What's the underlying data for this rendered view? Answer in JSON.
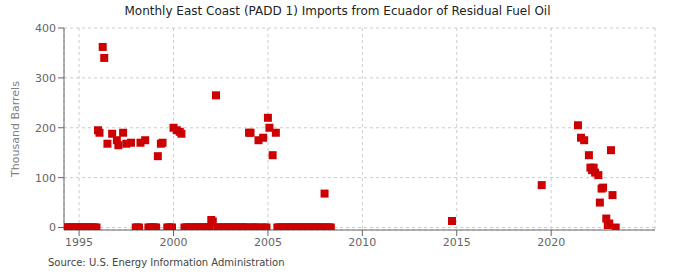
{
  "chart_data": {
    "type": "scatter",
    "title": "Monthly East Coast (PADD 1) Imports from Ecuador of Residual Fuel Oil",
    "ylabel": "Thousand Barrels",
    "source": "Source: U.S. Energy Information Administration",
    "color": "#cc0000",
    "marker": "square",
    "grid": true,
    "xlim": [
      1994.2,
      2025.5
    ],
    "ylim": [
      -5,
      400
    ],
    "xticks": [
      1995,
      2000,
      2005,
      2010,
      2015,
      2020
    ],
    "yticks": [
      0,
      100,
      200,
      300,
      400
    ],
    "x": [
      1994.25,
      1994.33,
      1994.42,
      1994.5,
      1994.58,
      1994.67,
      1994.75,
      1994.83,
      1994.92,
      1995.0,
      1995.08,
      1995.17,
      1995.25,
      1995.33,
      1995.42,
      1995.5,
      1995.58,
      1995.67,
      1995.75,
      1995.83,
      1995.92,
      1996.0,
      1996.08,
      1996.25,
      1996.33,
      1996.5,
      1996.75,
      1997.0,
      1997.08,
      1997.33,
      1997.5,
      1997.75,
      1998.0,
      1998.08,
      1998.17,
      1998.25,
      1998.5,
      1998.67,
      1998.75,
      1998.83,
      1998.92,
      1999.0,
      1999.08,
      1999.17,
      1999.33,
      1999.42,
      1999.67,
      1999.75,
      1999.83,
      1999.92,
      2000.0,
      2000.17,
      2000.33,
      2000.42,
      2000.58,
      2000.67,
      2000.75,
      2000.83,
      2000.92,
      2001.0,
      2001.08,
      2001.17,
      2001.25,
      2001.33,
      2001.42,
      2001.5,
      2001.58,
      2001.67,
      2001.75,
      2001.83,
      2001.92,
      2002.0,
      2002.08,
      2002.25,
      2002.33,
      2002.42,
      2002.5,
      2002.58,
      2002.67,
      2002.75,
      2002.83,
      2002.92,
      2003.0,
      2003.08,
      2003.17,
      2003.25,
      2003.33,
      2003.42,
      2003.5,
      2003.58,
      2003.67,
      2003.75,
      2003.83,
      2003.92,
      2004.0,
      2004.08,
      2004.17,
      2004.25,
      2004.33,
      2004.42,
      2004.5,
      2004.67,
      2004.75,
      2004.83,
      2004.92,
      2005.0,
      2005.08,
      2005.25,
      2005.42,
      2005.5,
      2005.58,
      2005.67,
      2005.75,
      2005.83,
      2005.92,
      2006.0,
      2006.08,
      2006.17,
      2006.25,
      2006.33,
      2006.42,
      2006.5,
      2006.58,
      2006.67,
      2006.75,
      2006.83,
      2006.92,
      2007.0,
      2007.08,
      2007.17,
      2007.25,
      2007.33,
      2007.42,
      2007.5,
      2007.58,
      2007.67,
      2007.75,
      2007.83,
      2007.92,
      2008.0,
      2008.08,
      2008.17,
      2008.25,
      2008.33,
      2014.75,
      2019.5,
      2021.42,
      2021.58,
      2021.75,
      2022.0,
      2022.08,
      2022.17,
      2022.25,
      2022.33,
      2022.5,
      2022.58,
      2022.67,
      2022.75,
      2022.92,
      2023.0,
      2023.08,
      2023.17,
      2023.25,
      2023.42
    ],
    "values": [
      0,
      0,
      0,
      0,
      0,
      0,
      0,
      0,
      0,
      0,
      0,
      0,
      0,
      0,
      0,
      0,
      0,
      0,
      0,
      0,
      0,
      195,
      190,
      362,
      340,
      168,
      188,
      175,
      165,
      190,
      168,
      170,
      0,
      0,
      0,
      170,
      175,
      0,
      0,
      0,
      0,
      0,
      0,
      143,
      168,
      170,
      0,
      0,
      0,
      0,
      200,
      195,
      192,
      188,
      0,
      0,
      0,
      0,
      0,
      0,
      0,
      0,
      0,
      0,
      0,
      0,
      0,
      0,
      0,
      0,
      0,
      15,
      12,
      265,
      0,
      0,
      0,
      0,
      0,
      0,
      0,
      0,
      0,
      0,
      0,
      0,
      0,
      0,
      0,
      0,
      0,
      0,
      0,
      0,
      190,
      190,
      0,
      0,
      0,
      0,
      175,
      0,
      180,
      0,
      0,
      220,
      200,
      145,
      190,
      0,
      0,
      0,
      0,
      0,
      0,
      0,
      0,
      0,
      0,
      0,
      0,
      0,
      0,
      0,
      0,
      0,
      0,
      0,
      0,
      0,
      0,
      0,
      0,
      0,
      0,
      0,
      0,
      0,
      0,
      68,
      0,
      0,
      0,
      0,
      13,
      85,
      205,
      180,
      175,
      145,
      120,
      115,
      120,
      110,
      105,
      50,
      78,
      80,
      18,
      5,
      8,
      155,
      65,
      0
    ]
  }
}
